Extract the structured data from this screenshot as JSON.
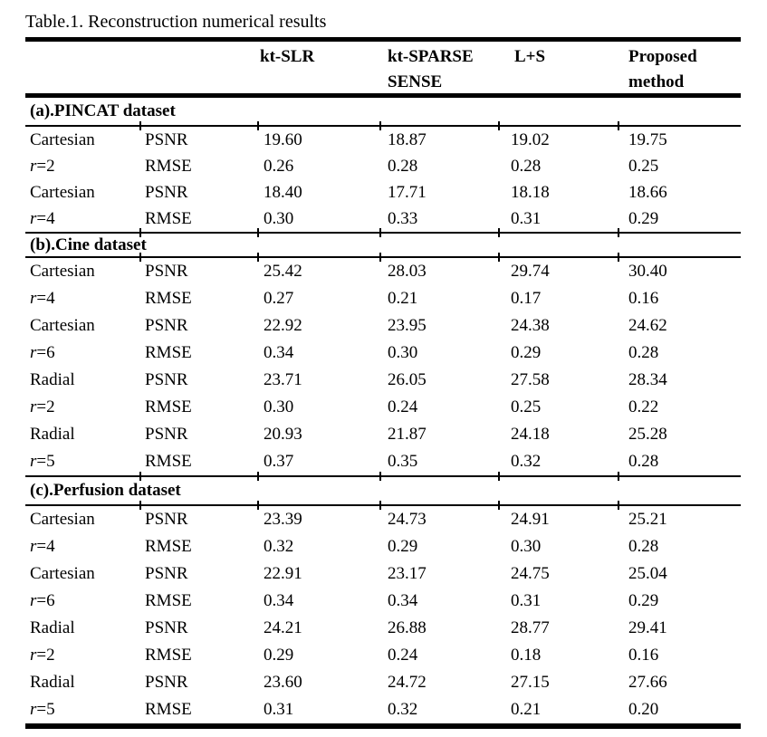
{
  "colors": {
    "text": "#000000",
    "background": "#ffffff",
    "rule": "#000000"
  },
  "caption": "Table.1. Reconstruction numerical results",
  "header": {
    "kt_slr": "kt-SLR",
    "kt_sparse_1": "kt-SPARSE",
    "kt_sparse_2": "SENSE",
    "l_s": "L+S",
    "proposed_1": "Proposed",
    "proposed_2": "method"
  },
  "metrics": {
    "psnr": "PSNR",
    "rmse": "RMSE"
  },
  "sections": [
    {
      "label": "(a).PINCAT dataset",
      "groups": [
        {
          "sampling": "Cartesian",
          "r_var": "r",
          "r_val": "=2",
          "psnr": [
            "19.60",
            "18.87",
            "19.02",
            "19.75"
          ],
          "rmse": [
            "0.26",
            "0.28",
            "0.28",
            "0.25"
          ]
        },
        {
          "sampling": "Cartesian",
          "r_var": "r",
          "r_val": "=4",
          "psnr": [
            "18.40",
            "17.71",
            "18.18",
            "18.66"
          ],
          "rmse": [
            "0.30",
            "0.33",
            "0.31",
            "0.29"
          ]
        }
      ]
    },
    {
      "label": "(b).Cine dataset",
      "groups": [
        {
          "sampling": "Cartesian",
          "r_var": "r",
          "r_val": "=4",
          "psnr": [
            "25.42",
            "28.03",
            "29.74",
            "30.40"
          ],
          "rmse": [
            "0.27",
            "0.21",
            "0.17",
            "0.16"
          ]
        },
        {
          "sampling": "Cartesian",
          "r_var": "r",
          "r_val": "=6",
          "psnr": [
            "22.92",
            "23.95",
            "24.38",
            "24.62"
          ],
          "rmse": [
            "0.34",
            "0.30",
            "0.29",
            "0.28"
          ]
        },
        {
          "sampling": "Radial",
          "r_var": "r",
          "r_val": "=2",
          "psnr": [
            "23.71",
            "26.05",
            "27.58",
            "28.34"
          ],
          "rmse": [
            "0.30",
            "0.24",
            "0.25",
            "0.22"
          ]
        },
        {
          "sampling": "Radial",
          "r_var": "r",
          "r_val": "=5",
          "psnr": [
            "20.93",
            "21.87",
            "24.18",
            "25.28"
          ],
          "rmse": [
            "0.37",
            "0.35",
            "0.32",
            "0.28"
          ]
        }
      ]
    },
    {
      "label": "(c).Perfusion dataset",
      "groups": [
        {
          "sampling": "Cartesian",
          "r_var": "r",
          "r_val": "=4",
          "psnr": [
            "23.39",
            "24.73",
            "24.91",
            "25.21"
          ],
          "rmse": [
            "0.32",
            "0.29",
            "0.30",
            "0.28"
          ]
        },
        {
          "sampling": "Cartesian",
          "r_var": "r",
          "r_val": "=6",
          "psnr": [
            "22.91",
            "23.17",
            "24.75",
            "25.04"
          ],
          "rmse": [
            "0.34",
            "0.34",
            "0.31",
            "0.29"
          ]
        },
        {
          "sampling": "Radial",
          "r_var": "r",
          "r_val": "=2",
          "psnr": [
            "24.21",
            "26.88",
            "28.77",
            "29.41"
          ],
          "rmse": [
            "0.29",
            "0.24",
            "0.18",
            "0.16"
          ]
        },
        {
          "sampling": "Radial",
          "r_var": "r",
          "r_val": "=5",
          "psnr": [
            "23.60",
            "24.72",
            "27.15",
            "27.66"
          ],
          "rmse": [
            "0.31",
            "0.32",
            "0.21",
            "0.20"
          ]
        }
      ]
    }
  ]
}
